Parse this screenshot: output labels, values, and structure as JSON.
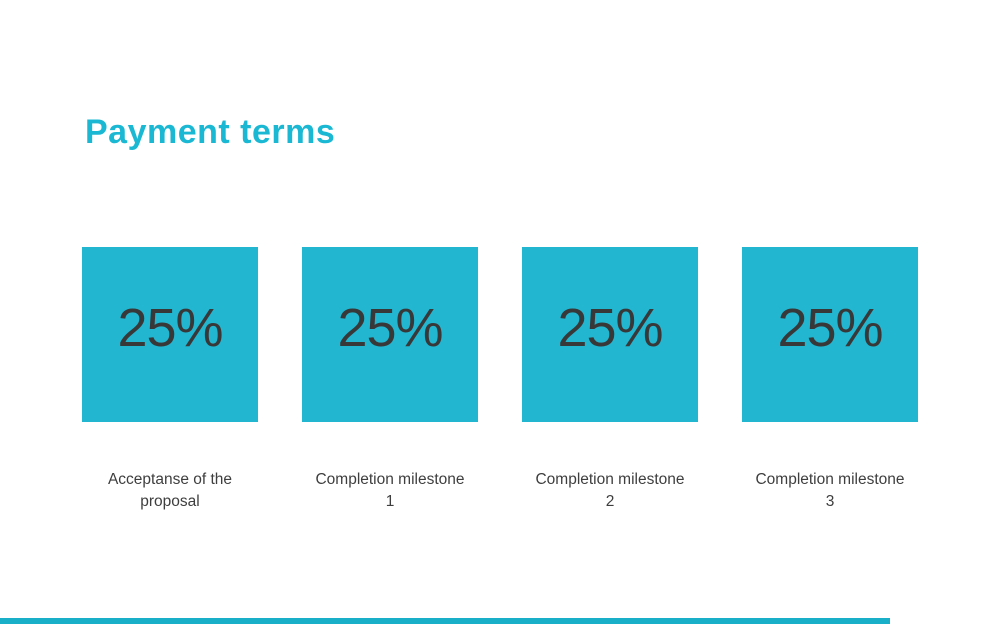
{
  "slide": {
    "title": "Payment terms"
  },
  "colors": {
    "background": "#ffffff",
    "accent-title": "#1bb8d4",
    "square-bg": "#22b6d0",
    "square-text": "#383838",
    "label-text": "#3e3e3e",
    "bottom-bar": "#1aafc9"
  },
  "milestones": [
    {
      "percent": "25%",
      "label": "Acceptanse of the\nproposal"
    },
    {
      "percent": "25%",
      "label": "Completion milestone\n1"
    },
    {
      "percent": "25%",
      "label": "Completion milestone\n2"
    },
    {
      "percent": "25%",
      "label": "Completion milestone\n3"
    }
  ]
}
